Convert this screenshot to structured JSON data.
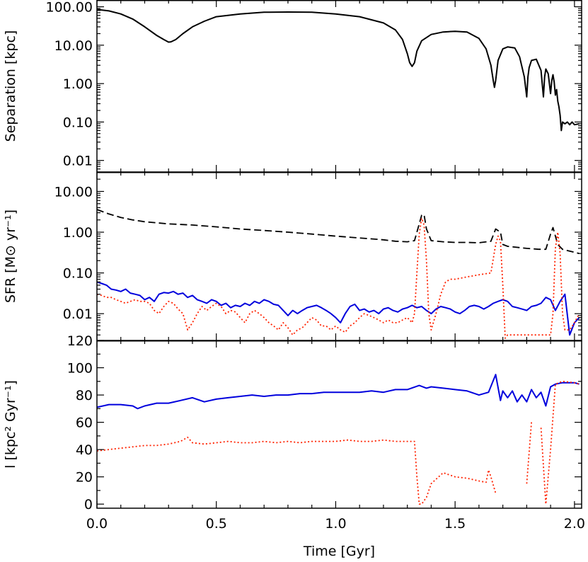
{
  "chart_data": [
    {
      "type": "line",
      "panel": "top",
      "ylabel": "Separation [kpc]",
      "yscale": "log",
      "ylim": [
        0.005,
        150
      ],
      "xlim": [
        0.0,
        2.03
      ],
      "ytick_labels": [
        "100.00",
        "10.00",
        "1.00",
        "0.10",
        "0.01"
      ],
      "ytick_values": [
        100,
        10,
        1,
        0.1,
        0.01
      ],
      "series": [
        {
          "style": "solid",
          "color": "#000000",
          "x": [
            0.0,
            0.05,
            0.1,
            0.15,
            0.2,
            0.25,
            0.28,
            0.3,
            0.31,
            0.33,
            0.36,
            0.4,
            0.45,
            0.5,
            0.6,
            0.7,
            0.8,
            0.9,
            1.0,
            1.1,
            1.2,
            1.25,
            1.28,
            1.3,
            1.31,
            1.32,
            1.33,
            1.34,
            1.36,
            1.4,
            1.45,
            1.5,
            1.55,
            1.6,
            1.63,
            1.65,
            1.66,
            1.665,
            1.67,
            1.68,
            1.7,
            1.72,
            1.75,
            1.77,
            1.79,
            1.8,
            1.805,
            1.81,
            1.82,
            1.84,
            1.86,
            1.87,
            1.875,
            1.88,
            1.89,
            1.9,
            1.905,
            1.91,
            1.915,
            1.92,
            1.925,
            1.93,
            1.935,
            1.94,
            1.945,
            1.95,
            1.96,
            1.97,
            1.98,
            1.99,
            2.0,
            2.02
          ],
          "y": [
            85,
            78,
            65,
            48,
            30,
            18,
            14,
            12,
            12.2,
            14,
            20,
            30,
            42,
            55,
            65,
            72,
            73,
            72,
            65,
            55,
            38,
            25,
            14,
            6,
            3.5,
            2.8,
            3.5,
            7,
            13,
            19,
            22,
            23,
            22,
            15,
            8,
            3,
            1.2,
            0.8,
            1.2,
            4,
            8,
            9,
            8.5,
            5,
            1.5,
            0.45,
            1.5,
            2.6,
            4,
            4.3,
            2.2,
            0.45,
            1.5,
            2.4,
            1.8,
            0.55,
            1.2,
            1.7,
            1.1,
            0.5,
            0.7,
            0.35,
            0.25,
            0.15,
            0.06,
            0.1,
            0.09,
            0.1,
            0.085,
            0.1,
            0.085,
            0.09
          ]
        }
      ]
    },
    {
      "type": "line",
      "panel": "middle",
      "ylabel": "SFR [M⊙ yr⁻¹]",
      "yscale": "log",
      "ylim": [
        0.0022,
        30
      ],
      "xlim": [
        0.0,
        2.03
      ],
      "ytick_labels": [
        "10.00",
        "1.00",
        "0.10",
        "0.01"
      ],
      "ytick_values": [
        10,
        1,
        0.1,
        0.01
      ],
      "series": [
        {
          "style": "dashed",
          "color": "#000000",
          "x": [
            0.0,
            0.05,
            0.1,
            0.15,
            0.2,
            0.3,
            0.4,
            0.5,
            0.6,
            0.7,
            0.8,
            0.9,
            1.0,
            1.1,
            1.2,
            1.25,
            1.3,
            1.33,
            1.35,
            1.36,
            1.37,
            1.38,
            1.4,
            1.45,
            1.5,
            1.55,
            1.6,
            1.65,
            1.67,
            1.69,
            1.7,
            1.72,
            1.8,
            1.85,
            1.88,
            1.9,
            1.91,
            1.93,
            1.95,
            2.0,
            2.02
          ],
          "y": [
            3.6,
            2.8,
            2.3,
            2.0,
            1.8,
            1.6,
            1.5,
            1.35,
            1.2,
            1.1,
            1.0,
            0.9,
            0.8,
            0.72,
            0.65,
            0.6,
            0.58,
            0.62,
            1.6,
            2.6,
            2.7,
            1.2,
            0.62,
            0.58,
            0.56,
            0.56,
            0.55,
            0.6,
            1.2,
            1.0,
            0.5,
            0.45,
            0.4,
            0.38,
            0.38,
            0.9,
            1.3,
            0.5,
            0.38,
            0.32,
            0.3
          ]
        },
        {
          "style": "solid",
          "color": "#0000dd",
          "x": [
            0.0,
            0.02,
            0.04,
            0.06,
            0.08,
            0.1,
            0.12,
            0.14,
            0.16,
            0.18,
            0.2,
            0.22,
            0.24,
            0.26,
            0.28,
            0.3,
            0.32,
            0.34,
            0.36,
            0.38,
            0.4,
            0.42,
            0.44,
            0.46,
            0.48,
            0.5,
            0.52,
            0.54,
            0.56,
            0.58,
            0.6,
            0.62,
            0.64,
            0.66,
            0.68,
            0.7,
            0.72,
            0.74,
            0.76,
            0.78,
            0.8,
            0.82,
            0.84,
            0.86,
            0.88,
            0.9,
            0.92,
            0.94,
            0.96,
            0.98,
            1.0,
            1.02,
            1.04,
            1.06,
            1.08,
            1.1,
            1.12,
            1.14,
            1.16,
            1.18,
            1.2,
            1.22,
            1.24,
            1.26,
            1.28,
            1.3,
            1.32,
            1.34,
            1.36,
            1.38,
            1.4,
            1.42,
            1.44,
            1.46,
            1.48,
            1.5,
            1.52,
            1.54,
            1.56,
            1.58,
            1.6,
            1.62,
            1.64,
            1.66,
            1.68,
            1.7,
            1.72,
            1.74,
            1.76,
            1.78,
            1.8,
            1.82,
            1.84,
            1.86,
            1.88,
            1.9,
            1.92,
            1.94,
            1.96,
            1.98,
            2.0,
            2.02
          ],
          "y": [
            0.06,
            0.055,
            0.05,
            0.04,
            0.038,
            0.035,
            0.04,
            0.032,
            0.03,
            0.028,
            0.022,
            0.025,
            0.02,
            0.03,
            0.033,
            0.032,
            0.035,
            0.03,
            0.032,
            0.025,
            0.028,
            0.022,
            0.02,
            0.018,
            0.022,
            0.02,
            0.016,
            0.018,
            0.014,
            0.016,
            0.015,
            0.018,
            0.016,
            0.02,
            0.018,
            0.022,
            0.02,
            0.017,
            0.016,
            0.012,
            0.009,
            0.012,
            0.01,
            0.012,
            0.014,
            0.015,
            0.016,
            0.014,
            0.012,
            0.01,
            0.008,
            0.006,
            0.01,
            0.015,
            0.017,
            0.012,
            0.013,
            0.011,
            0.012,
            0.01,
            0.013,
            0.014,
            0.012,
            0.011,
            0.013,
            0.014,
            0.016,
            0.014,
            0.015,
            0.012,
            0.01,
            0.013,
            0.015,
            0.014,
            0.013,
            0.011,
            0.01,
            0.012,
            0.015,
            0.016,
            0.015,
            0.013,
            0.015,
            0.018,
            0.02,
            0.022,
            0.02,
            0.015,
            0.014,
            0.013,
            0.012,
            0.015,
            0.016,
            0.018,
            0.025,
            0.022,
            0.012,
            0.02,
            0.03,
            0.003,
            0.006,
            0.008
          ]
        },
        {
          "style": "dotted",
          "color": "#ff2200",
          "x": [
            0.0,
            0.02,
            0.04,
            0.06,
            0.08,
            0.1,
            0.12,
            0.14,
            0.16,
            0.18,
            0.2,
            0.22,
            0.24,
            0.26,
            0.28,
            0.3,
            0.32,
            0.34,
            0.36,
            0.38,
            0.4,
            0.42,
            0.44,
            0.46,
            0.48,
            0.5,
            0.52,
            0.54,
            0.56,
            0.58,
            0.6,
            0.62,
            0.64,
            0.66,
            0.68,
            0.7,
            0.72,
            0.74,
            0.76,
            0.78,
            0.8,
            0.82,
            0.84,
            0.86,
            0.88,
            0.9,
            0.92,
            0.94,
            0.96,
            0.98,
            1.0,
            1.02,
            1.04,
            1.06,
            1.08,
            1.1,
            1.12,
            1.14,
            1.16,
            1.18,
            1.2,
            1.22,
            1.24,
            1.26,
            1.28,
            1.3,
            1.32,
            1.33,
            1.34,
            1.35,
            1.36,
            1.37,
            1.38,
            1.39,
            1.4,
            1.42,
            1.44,
            1.46,
            1.48,
            1.5,
            1.55,
            1.6,
            1.65,
            1.67,
            1.68,
            1.69,
            1.7,
            1.71,
            1.72,
            1.74,
            1.76,
            1.8,
            1.85,
            1.9,
            1.91,
            1.92,
            1.93,
            1.94,
            1.95,
            1.96,
            1.98,
            2.0,
            2.02
          ],
          "y": [
            0.03,
            0.028,
            0.025,
            0.025,
            0.022,
            0.02,
            0.018,
            0.02,
            0.022,
            0.02,
            0.02,
            0.018,
            0.012,
            0.01,
            0.015,
            0.02,
            0.018,
            0.013,
            0.01,
            0.004,
            0.006,
            0.01,
            0.015,
            0.012,
            0.015,
            0.018,
            0.015,
            0.01,
            0.012,
            0.011,
            0.008,
            0.006,
            0.01,
            0.012,
            0.01,
            0.008,
            0.006,
            0.005,
            0.004,
            0.006,
            0.0045,
            0.003,
            0.004,
            0.0045,
            0.006,
            0.008,
            0.007,
            0.005,
            0.005,
            0.004,
            0.005,
            0.004,
            0.0035,
            0.005,
            0.006,
            0.008,
            0.01,
            0.009,
            0.008,
            0.007,
            0.006,
            0.007,
            0.006,
            0.006,
            0.007,
            0.008,
            0.006,
            0.01,
            0.1,
            0.9,
            2.2,
            1.5,
            0.2,
            0.01,
            0.004,
            0.01,
            0.03,
            0.06,
            0.07,
            0.07,
            0.08,
            0.09,
            0.1,
            0.5,
            0.8,
            0.6,
            0.05,
            0.0025,
            0.003,
            0.003,
            0.003,
            0.003,
            0.003,
            0.003,
            0.01,
            0.4,
            1.0,
            0.3,
            0.01,
            0.004,
            0.004,
            0.006,
            0.01
          ]
        }
      ]
    },
    {
      "type": "line",
      "panel": "bottom",
      "ylabel": "l [kpc² Gyr⁻¹]",
      "xlabel": "Time [Gyr]",
      "ylim": [
        -3,
        120
      ],
      "xlim": [
        0.0,
        2.03
      ],
      "ytick_labels": [
        "120",
        "100",
        "80",
        "60",
        "40",
        "20",
        "0"
      ],
      "ytick_values": [
        120,
        100,
        80,
        60,
        40,
        20,
        0
      ],
      "xtick_labels": [
        "0.0",
        "0.5",
        "1.0",
        "1.5",
        "2.0"
      ],
      "xtick_values": [
        0.0,
        0.5,
        1.0,
        1.5,
        2.0
      ],
      "series": [
        {
          "style": "solid",
          "color": "#0000dd",
          "x": [
            0.0,
            0.05,
            0.1,
            0.15,
            0.17,
            0.2,
            0.25,
            0.3,
            0.35,
            0.4,
            0.45,
            0.5,
            0.55,
            0.6,
            0.65,
            0.7,
            0.75,
            0.8,
            0.85,
            0.9,
            0.95,
            1.0,
            1.05,
            1.1,
            1.15,
            1.2,
            1.25,
            1.3,
            1.35,
            1.38,
            1.4,
            1.45,
            1.5,
            1.55,
            1.6,
            1.64,
            1.67,
            1.69,
            1.7,
            1.72,
            1.74,
            1.76,
            1.78,
            1.8,
            1.82,
            1.84,
            1.86,
            1.88,
            1.9,
            1.92,
            1.95,
            2.0,
            2.02
          ],
          "y": [
            71,
            73,
            73,
            72,
            70,
            72,
            74,
            74,
            76,
            78,
            75,
            77,
            78,
            79,
            80,
            79,
            80,
            80,
            81,
            81,
            82,
            82,
            82,
            82,
            83,
            82,
            84,
            84,
            87,
            85,
            86,
            85,
            84,
            83,
            80,
            82,
            95,
            76,
            83,
            78,
            83,
            75,
            80,
            75,
            84,
            78,
            82,
            72,
            86,
            88,
            89,
            89,
            88
          ]
        },
        {
          "style": "dotted",
          "color": "#ff2200",
          "x": [
            0.0,
            0.05,
            0.1,
            0.15,
            0.2,
            0.25,
            0.3,
            0.35,
            0.38,
            0.4,
            0.45,
            0.5,
            0.55,
            0.6,
            0.65,
            0.7,
            0.75,
            0.8,
            0.85,
            0.9,
            0.95,
            1.0,
            1.05,
            1.1,
            1.15,
            1.2,
            1.25,
            1.3,
            1.33,
            1.34,
            1.35,
            1.36,
            1.38,
            1.4,
            1.45,
            1.5,
            1.55,
            1.6,
            1.63,
            1.64,
            1.65,
            1.66,
            1.67,
            1.7,
            1.72,
            1.74,
            1.76,
            1.78,
            1.8,
            1.82,
            1.84,
            1.86,
            1.88,
            1.9,
            1.92,
            1.95,
            2.0,
            2.02
          ],
          "y": [
            39,
            40,
            41,
            42,
            43,
            43,
            44,
            46,
            49,
            45,
            44,
            45,
            46,
            45,
            45,
            46,
            45,
            46,
            45,
            46,
            46,
            46,
            47,
            46,
            46,
            47,
            46,
            46,
            46,
            20,
            0,
            0,
            5,
            15,
            23,
            20,
            19,
            17,
            16,
            25,
            20,
            14,
            8,
            null,
            null,
            null,
            null,
            null,
            15,
            60,
            null,
            56,
            0,
            40,
            88,
            90,
            89,
            88
          ]
        }
      ]
    }
  ]
}
